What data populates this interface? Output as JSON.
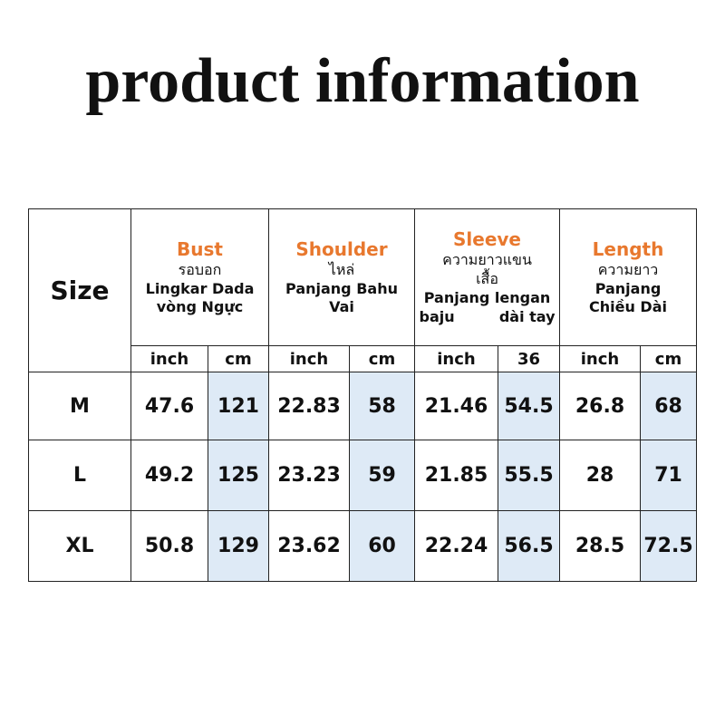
{
  "title": "product information",
  "table": {
    "size_header": "Size",
    "groups": [
      {
        "name": "Bust",
        "lines": [
          "รอบอก",
          "Lingkar Dada",
          "vòng Ngực"
        ]
      },
      {
        "name": "Shoulder",
        "lines": [
          "ไหล่",
          "Panjang Bahu",
          "Vai"
        ]
      },
      {
        "name": "Sleeve",
        "lines": [
          "ความยาวแขน",
          "เสื้อ",
          "Panjang lengan",
          [
            "baju",
            "dài tay"
          ]
        ]
      },
      {
        "name": "Length",
        "lines": [
          "ความยาว",
          "Panjang",
          "Chiều Dài"
        ]
      }
    ],
    "units": [
      "inch",
      "cm",
      "inch",
      "cm",
      "inch",
      "36",
      "inch",
      "cm"
    ],
    "rows": [
      [
        "M",
        47.6,
        121,
        22.83,
        58,
        21.46,
        54.5,
        26.8,
        68
      ],
      [
        "L",
        49.2,
        125,
        23.23,
        59,
        21.85,
        55.5,
        28,
        71
      ],
      [
        "XL",
        50.8,
        129,
        23.62,
        60,
        22.24,
        56.5,
        28.5,
        72.5
      ]
    ]
  }
}
